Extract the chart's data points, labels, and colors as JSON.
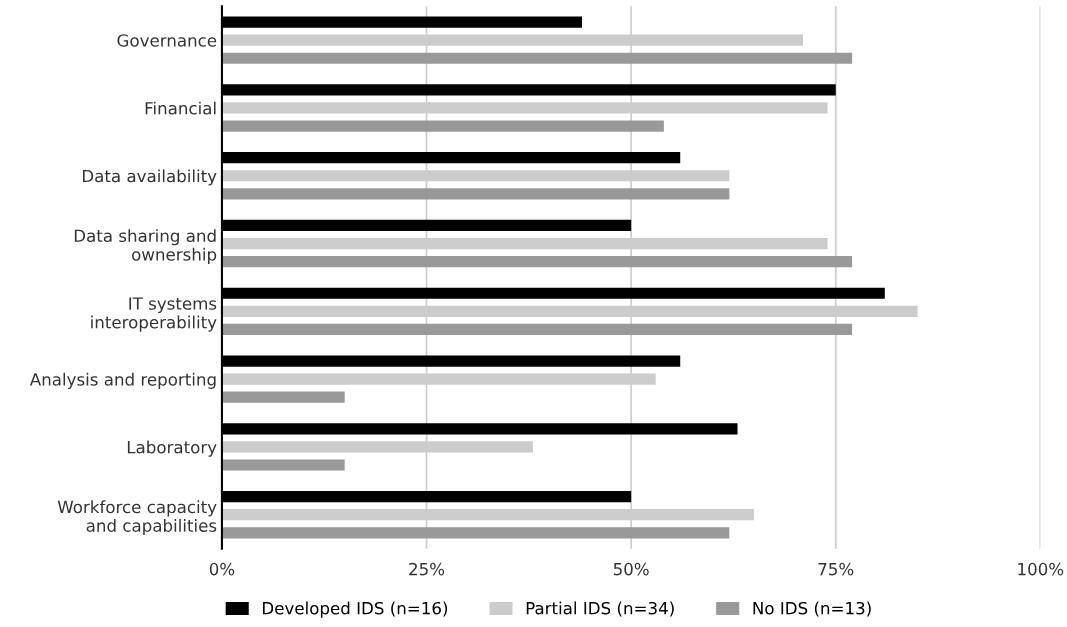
{
  "chart_data": {
    "type": "bar",
    "orientation": "horizontal",
    "categories": [
      "Governance",
      "Financial",
      "Data availability",
      "Data sharing and\nownership",
      "IT systems\ninteroperability",
      "Analysis and reporting",
      "Laboratory",
      "Workforce capacity\nand capabilities"
    ],
    "series": [
      {
        "name": "Developed IDS (n=16)",
        "color": "#000000",
        "values": [
          44,
          75,
          56,
          50,
          81,
          56,
          63,
          50
        ]
      },
      {
        "name": "Partial IDS (n=34)",
        "color": "#cccccc",
        "values": [
          71,
          74,
          62,
          74,
          85,
          53,
          38,
          65
        ]
      },
      {
        "name": "No IDS (n=13)",
        "color": "#999999",
        "values": [
          77,
          54,
          62,
          77,
          77,
          15,
          15,
          62
        ]
      }
    ],
    "xlim": [
      0,
      100
    ],
    "xticks": [
      {
        "value": 0,
        "label": "0%"
      },
      {
        "value": 25,
        "label": "25%"
      },
      {
        "value": 50,
        "label": "50%"
      },
      {
        "value": 75,
        "label": "75%"
      },
      {
        "value": 100,
        "label": "100%"
      }
    ],
    "grid": "x",
    "legend": "bottom"
  }
}
